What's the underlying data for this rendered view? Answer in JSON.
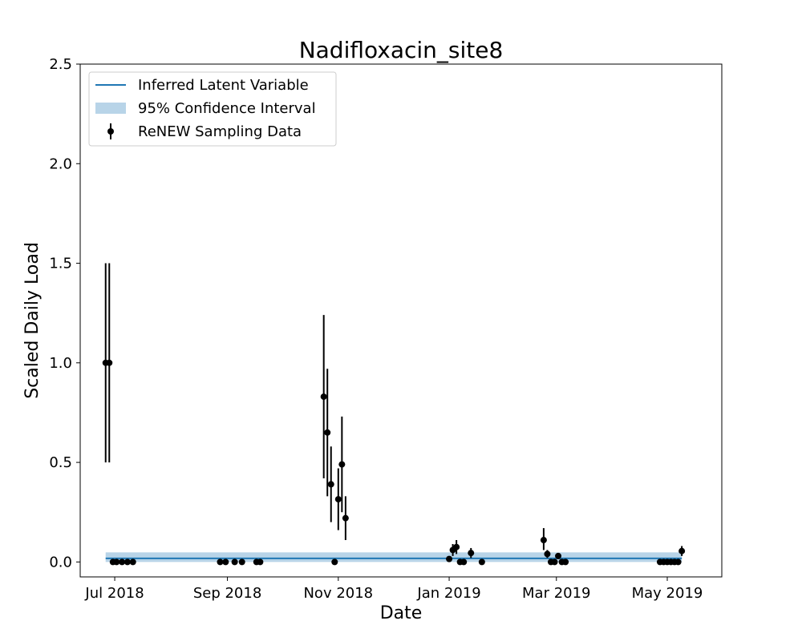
{
  "chart_data": {
    "type": "line",
    "title": "Nadifloxacin_site8",
    "xlabel": "Date",
    "ylabel": "Scaled Daily Load",
    "xlim": [
      "2018-06-12",
      "2019-05-31"
    ],
    "ylim": [
      -0.075,
      2.5
    ],
    "grid": false,
    "legend_position": "top-left",
    "x_ticks": [
      {
        "date": "2018-07-01",
        "label": "Jul 2018"
      },
      {
        "date": "2018-09-01",
        "label": "Sep 2018"
      },
      {
        "date": "2018-11-01",
        "label": "Nov 2018"
      },
      {
        "date": "2019-01-01",
        "label": "Jan 2019"
      },
      {
        "date": "2019-03-01",
        "label": "Mar 2019"
      },
      {
        "date": "2019-05-01",
        "label": "May 2019"
      }
    ],
    "y_ticks": [
      {
        "value": 0.0,
        "label": "0.0"
      },
      {
        "value": 0.5,
        "label": "0.5"
      },
      {
        "value": 1.0,
        "label": "1.0"
      },
      {
        "value": 1.5,
        "label": "1.5"
      },
      {
        "value": 2.0,
        "label": "2.0"
      },
      {
        "value": 2.5,
        "label": "2.5"
      }
    ],
    "legend": [
      {
        "label": "Inferred Latent Variable",
        "kind": "line"
      },
      {
        "label": "95% Confidence Interval",
        "kind": "band"
      },
      {
        "label": "ReNEW Sampling Data",
        "kind": "errorbar"
      }
    ],
    "latent_variable": {
      "name": "Inferred Latent Variable",
      "color": "#1f77b4",
      "x": [
        "2018-06-26",
        "2019-05-09"
      ],
      "y": [
        0.018,
        0.018
      ]
    },
    "confidence_interval": {
      "name": "95% Confidence Interval",
      "color": "#b8d4e8",
      "x": [
        "2018-06-26",
        "2019-05-09"
      ],
      "lower": [
        0.0,
        0.0
      ],
      "upper": [
        0.048,
        0.048
      ]
    },
    "sampling_data": {
      "name": "ReNEW Sampling Data",
      "color": "#000000",
      "points": [
        {
          "date": "2018-06-26",
          "y": 1.0,
          "lo": 0.5,
          "hi": 1.5
        },
        {
          "date": "2018-06-28",
          "y": 1.0,
          "lo": 0.5,
          "hi": 1.5
        },
        {
          "date": "2018-06-30",
          "y": 0.0
        },
        {
          "date": "2018-07-02",
          "y": 0.0
        },
        {
          "date": "2018-07-05",
          "y": 0.0
        },
        {
          "date": "2018-07-08",
          "y": 0.0
        },
        {
          "date": "2018-07-11",
          "y": 0.0
        },
        {
          "date": "2018-08-28",
          "y": 0.0
        },
        {
          "date": "2018-08-31",
          "y": 0.0
        },
        {
          "date": "2018-09-05",
          "y": 0.0
        },
        {
          "date": "2018-09-09",
          "y": 0.0
        },
        {
          "date": "2018-09-17",
          "y": 0.0
        },
        {
          "date": "2018-09-19",
          "y": 0.0
        },
        {
          "date": "2018-10-24",
          "y": 0.83,
          "lo": 0.42,
          "hi": 1.24
        },
        {
          "date": "2018-10-26",
          "y": 0.65,
          "lo": 0.33,
          "hi": 0.97
        },
        {
          "date": "2018-10-28",
          "y": 0.39,
          "lo": 0.2,
          "hi": 0.58
        },
        {
          "date": "2018-10-30",
          "y": 0.0
        },
        {
          "date": "2018-11-01",
          "y": 0.315,
          "lo": 0.16,
          "hi": 0.47
        },
        {
          "date": "2018-11-03",
          "y": 0.49,
          "lo": 0.25,
          "hi": 0.73
        },
        {
          "date": "2018-11-05",
          "y": 0.22,
          "lo": 0.11,
          "hi": 0.33
        },
        {
          "date": "2019-01-01",
          "y": 0.015,
          "lo": 0.005,
          "hi": 0.025
        },
        {
          "date": "2019-01-03",
          "y": 0.06,
          "lo": 0.03,
          "hi": 0.09
        },
        {
          "date": "2019-01-05",
          "y": 0.075,
          "lo": 0.04,
          "hi": 0.11
        },
        {
          "date": "2019-01-07",
          "y": 0.0
        },
        {
          "date": "2019-01-09",
          "y": 0.0
        },
        {
          "date": "2019-01-13",
          "y": 0.045,
          "lo": 0.02,
          "hi": 0.07
        },
        {
          "date": "2019-01-19",
          "y": 0.0
        },
        {
          "date": "2019-02-22",
          "y": 0.11,
          "lo": 0.06,
          "hi": 0.17
        },
        {
          "date": "2019-02-24",
          "y": 0.04,
          "lo": 0.02,
          "hi": 0.06
        },
        {
          "date": "2019-02-26",
          "y": 0.0
        },
        {
          "date": "2019-02-28",
          "y": 0.0
        },
        {
          "date": "2019-03-02",
          "y": 0.03,
          "lo": 0.015,
          "hi": 0.045
        },
        {
          "date": "2019-03-04",
          "y": 0.0
        },
        {
          "date": "2019-03-06",
          "y": 0.0
        },
        {
          "date": "2019-04-27",
          "y": 0.0
        },
        {
          "date": "2019-04-29",
          "y": 0.0
        },
        {
          "date": "2019-05-01",
          "y": 0.0
        },
        {
          "date": "2019-05-03",
          "y": 0.0
        },
        {
          "date": "2019-05-05",
          "y": 0.0
        },
        {
          "date": "2019-05-07",
          "y": 0.0
        },
        {
          "date": "2019-05-09",
          "y": 0.055,
          "lo": 0.03,
          "hi": 0.08
        }
      ]
    }
  }
}
